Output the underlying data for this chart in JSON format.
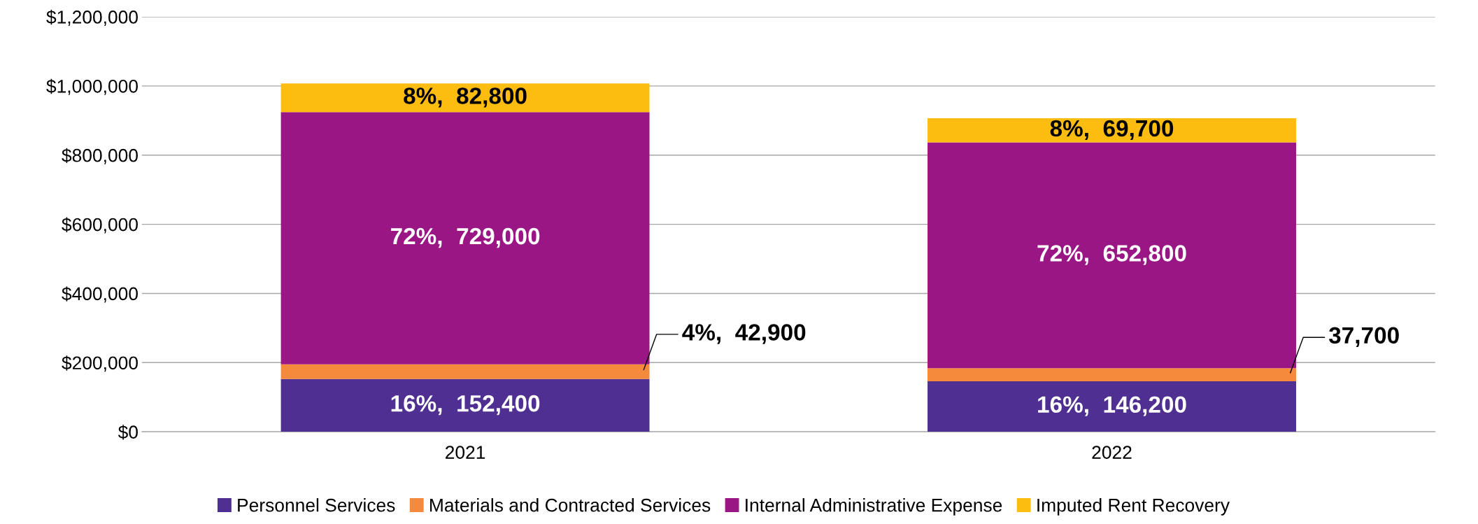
{
  "chart_data": {
    "type": "bar",
    "stacked": true,
    "categories": [
      "2021",
      "2022"
    ],
    "series": [
      {
        "name": "Personnel Services",
        "color": "#4f2f91",
        "values": [
          152400,
          146200
        ],
        "value_labels": [
          "16%,  152,400",
          "16%,  146,200"
        ]
      },
      {
        "name": "Materials and Contracted Services",
        "color": "#f58a3c",
        "values": [
          42900,
          37700
        ],
        "value_labels": [
          "4%,  42,900",
          "37,700"
        ]
      },
      {
        "name": "Internal Administrative Expense",
        "color": "#9b1685",
        "values": [
          729000,
          652800
        ],
        "value_labels": [
          "72%,  729,000",
          "72%,  652,800"
        ]
      },
      {
        "name": "Imputed Rent Recovery",
        "color": "#fdbd10",
        "values": [
          82800,
          69700
        ],
        "value_labels": [
          "8%,  82,800",
          "8%,  69,700"
        ]
      }
    ],
    "ylim": [
      0,
      1200000
    ],
    "yticks": [
      {
        "value": 0,
        "label": "$0"
      },
      {
        "value": 200000,
        "label": "$200,000"
      },
      {
        "value": 400000,
        "label": "$400,000"
      },
      {
        "value": 600000,
        "label": "$600,000"
      },
      {
        "value": 800000,
        "label": "$800,000"
      },
      {
        "value": 1000000,
        "label": "$1,000,000"
      },
      {
        "value": 1200000,
        "label": "$1,200,000"
      }
    ],
    "grid": "y",
    "legend": "bottom"
  }
}
